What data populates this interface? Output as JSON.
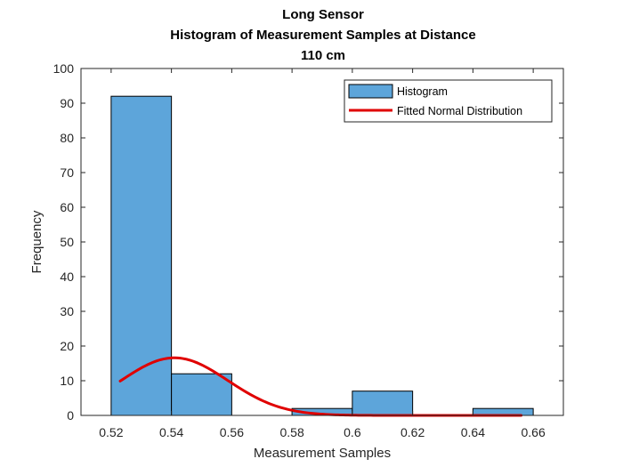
{
  "chart_data": {
    "type": "bar",
    "title": [
      "Long Sensor",
      "Histogram of Measurement Samples at Distance",
      "110 cm"
    ],
    "xlabel": "Measurement Samples",
    "ylabel": "Frequency",
    "xlim": [
      0.51,
      0.67
    ],
    "ylim": [
      0,
      100
    ],
    "xticks": [
      0.52,
      0.54,
      0.56,
      0.58,
      0.6,
      0.62,
      0.64,
      0.66
    ],
    "xtick_labels": [
      "0.52",
      "0.54",
      "0.56",
      "0.58",
      "0.6",
      "0.62",
      "0.64",
      "0.66"
    ],
    "yticks": [
      0,
      10,
      20,
      30,
      40,
      50,
      60,
      70,
      80,
      90,
      100
    ],
    "ytick_labels": [
      "0",
      "10",
      "20",
      "30",
      "40",
      "50",
      "60",
      "70",
      "80",
      "90",
      "100"
    ],
    "grid": false,
    "legend_position": "top-right",
    "series": [
      {
        "name": "Histogram",
        "type": "histogram",
        "color": "#5DA5DA",
        "bins": [
          {
            "start": 0.52,
            "end": 0.54,
            "count": 92
          },
          {
            "start": 0.54,
            "end": 0.56,
            "count": 12
          },
          {
            "start": 0.56,
            "end": 0.58,
            "count": 0
          },
          {
            "start": 0.58,
            "end": 0.6,
            "count": 2
          },
          {
            "start": 0.6,
            "end": 0.62,
            "count": 7
          },
          {
            "start": 0.62,
            "end": 0.64,
            "count": 0
          },
          {
            "start": 0.64,
            "end": 0.66,
            "count": 2
          }
        ]
      },
      {
        "name": "Fitted Normal Distribution",
        "type": "line",
        "color": "#E00000",
        "mean": 0.541,
        "std": 0.0177,
        "peak": 16.6,
        "x_range": [
          0.523,
          0.656
        ]
      }
    ]
  }
}
